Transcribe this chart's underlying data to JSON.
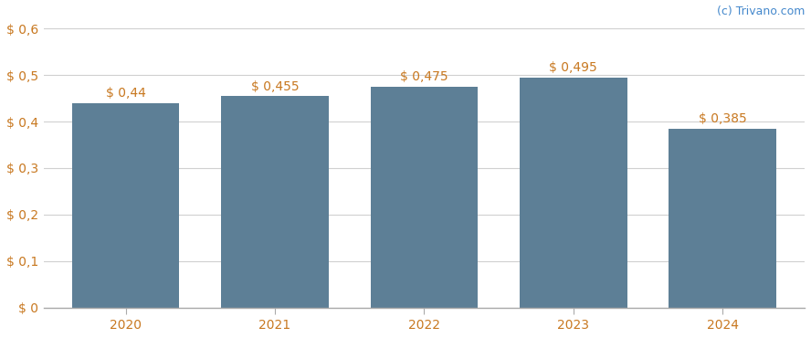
{
  "categories": [
    "2020",
    "2021",
    "2022",
    "2023",
    "2024"
  ],
  "values": [
    0.44,
    0.455,
    0.475,
    0.495,
    0.385
  ],
  "labels": [
    "$ 0,44",
    "$ 0,455",
    "$ 0,475",
    "$ 0,495",
    "$ 0,385"
  ],
  "bar_color": "#5d7f96",
  "background_color": "#ffffff",
  "ylim": [
    0,
    0.6
  ],
  "yticks": [
    0.0,
    0.1,
    0.2,
    0.3,
    0.4,
    0.5,
    0.6
  ],
  "ytick_labels": [
    "$ 0",
    "$ 0,1",
    "$ 0,2",
    "$ 0,3",
    "$ 0,4",
    "$ 0,5",
    "$ 0,6"
  ],
  "grid_color": "#d0d0d0",
  "watermark": "(c) Trivano.com",
  "watermark_color": "#4488cc",
  "label_color": "#c87820",
  "tick_color": "#c87820",
  "label_fontsize": 10,
  "tick_fontsize": 10,
  "bar_width": 0.72
}
